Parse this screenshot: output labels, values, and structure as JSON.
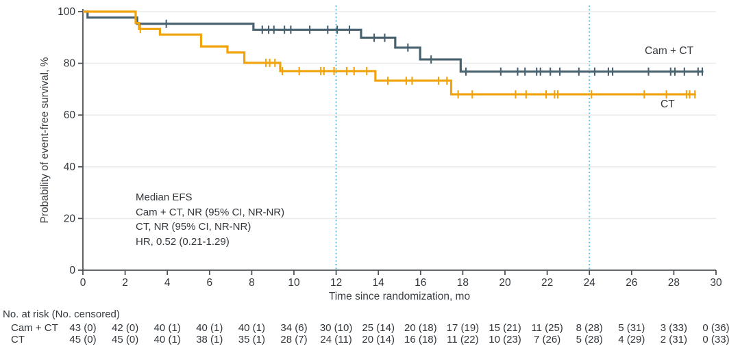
{
  "chart_data": {
    "type": "line",
    "subtype": "kaplan-meier-step",
    "title": "",
    "xlabel": "Time since randomization, mo",
    "ylabel": "Probability of event-free survival, %",
    "xlim": [
      0,
      30
    ],
    "ylim": [
      0,
      100
    ],
    "xticks": [
      0,
      2,
      4,
      6,
      8,
      10,
      12,
      14,
      16,
      18,
      20,
      22,
      24,
      26,
      28,
      30
    ],
    "yticks": [
      0,
      20,
      40,
      60,
      80,
      100
    ],
    "grid": "horizontal-light",
    "reference_lines_x": [
      12,
      24
    ],
    "series": [
      {
        "name": "Cam + CT",
        "color": "#47616f",
        "steps": [
          [
            0,
            100
          ],
          [
            0.22,
            97.7
          ],
          [
            2.57,
            95.3
          ],
          [
            8.08,
            93.0
          ],
          [
            13.18,
            89.9
          ],
          [
            14.8,
            86.1
          ],
          [
            15.98,
            81.5
          ],
          [
            17.9,
            76.8
          ],
          [
            29.4,
            76.8
          ]
        ],
        "censor_marks": [
          [
            3.95,
            95.3
          ],
          [
            8.5,
            93.0
          ],
          [
            8.8,
            93.0
          ],
          [
            9.05,
            93.0
          ],
          [
            9.55,
            93.0
          ],
          [
            9.85,
            93.0
          ],
          [
            10.75,
            93.0
          ],
          [
            11.6,
            93.0
          ],
          [
            12.05,
            93.0
          ],
          [
            12.63,
            93.0
          ],
          [
            13.8,
            89.9
          ],
          [
            14.3,
            89.9
          ],
          [
            15.4,
            86.1
          ],
          [
            16.5,
            81.5
          ],
          [
            18.15,
            76.8
          ],
          [
            19.8,
            76.8
          ],
          [
            20.6,
            76.8
          ],
          [
            20.95,
            76.8
          ],
          [
            21.5,
            76.8
          ],
          [
            21.68,
            76.8
          ],
          [
            22.15,
            76.8
          ],
          [
            22.6,
            76.8
          ],
          [
            23.5,
            76.8
          ],
          [
            24.25,
            76.8
          ],
          [
            24.9,
            76.8
          ],
          [
            25.1,
            76.8
          ],
          [
            26.8,
            76.8
          ],
          [
            27.85,
            76.8
          ],
          [
            28.05,
            76.8
          ],
          [
            28.5,
            76.8
          ],
          [
            29.15,
            76.8
          ],
          [
            29.35,
            76.8
          ]
        ]
      },
      {
        "name": "CT",
        "color": "#f0a30a",
        "steps": [
          [
            0,
            100
          ],
          [
            2.5,
            95.6
          ],
          [
            2.66,
            93.3
          ],
          [
            3.65,
            91.1
          ],
          [
            5.6,
            86.5
          ],
          [
            6.85,
            84.2
          ],
          [
            7.65,
            80.2
          ],
          [
            9.35,
            77.0
          ],
          [
            13.86,
            73.3
          ],
          [
            17.45,
            68.0
          ],
          [
            29.05,
            68.0
          ]
        ],
        "censor_marks": [
          [
            2.72,
            93.3
          ],
          [
            8.67,
            80.2
          ],
          [
            8.85,
            80.2
          ],
          [
            9.1,
            80.2
          ],
          [
            9.45,
            77.0
          ],
          [
            10.25,
            77.0
          ],
          [
            11.27,
            77.0
          ],
          [
            11.42,
            77.0
          ],
          [
            11.9,
            77.0
          ],
          [
            12.5,
            77.0
          ],
          [
            12.85,
            77.0
          ],
          [
            13.45,
            77.0
          ],
          [
            14.45,
            73.3
          ],
          [
            15.32,
            73.3
          ],
          [
            15.6,
            73.3
          ],
          [
            16.85,
            73.3
          ],
          [
            17.25,
            73.3
          ],
          [
            17.78,
            68.0
          ],
          [
            18.45,
            68.0
          ],
          [
            20.5,
            68.0
          ],
          [
            21.0,
            68.0
          ],
          [
            21.95,
            68.0
          ],
          [
            22.35,
            68.0
          ],
          [
            22.5,
            68.0
          ],
          [
            24.1,
            68.0
          ],
          [
            26.6,
            68.0
          ],
          [
            27.65,
            68.0
          ],
          [
            28.6,
            68.0
          ],
          [
            28.75,
            68.0
          ],
          [
            29.0,
            68.0
          ]
        ]
      }
    ],
    "annotation": {
      "lines": [
        "Median EFS",
        "Cam + CT, NR (95% CI, NR-NR)",
        "CT, NR (95% CI, NR-NR)",
        "HR, 0.52 (0.21-1.29)"
      ]
    },
    "legend_position": "curve-end-labels"
  },
  "risk_table": {
    "header": "No. at risk (No. censored)",
    "times": [
      0,
      2,
      4,
      6,
      8,
      10,
      12,
      14,
      16,
      18,
      20,
      22,
      24,
      26,
      28,
      30
    ],
    "rows": [
      {
        "label": "Cam + CT",
        "values": [
          "43 (0)",
          "42 (0)",
          "40 (1)",
          "40 (1)",
          "40 (1)",
          "34 (6)",
          "30 (10)",
          "25 (14)",
          "20 (18)",
          "17 (19)",
          "15 (21)",
          "11 (25)",
          "8 (28)",
          "5 (31)",
          "3 (33)",
          "0 (36)"
        ]
      },
      {
        "label": "CT",
        "values": [
          "45 (0)",
          "45 (0)",
          "40 (1)",
          "38 (1)",
          "35 (1)",
          "28 (7)",
          "24 (11)",
          "20 (14)",
          "16 (18)",
          "11 (22)",
          "10 (23)",
          "7 (26)",
          "5 (28)",
          "4 (29)",
          "2 (31)",
          "0 (33)"
        ]
      }
    ]
  },
  "colors": {
    "camct": "#47616f",
    "ct": "#f0a30a",
    "reference_line": "#5fc3e8",
    "gridline": "#ebebeb",
    "axis": "#4d5257",
    "text": "#32373c"
  }
}
